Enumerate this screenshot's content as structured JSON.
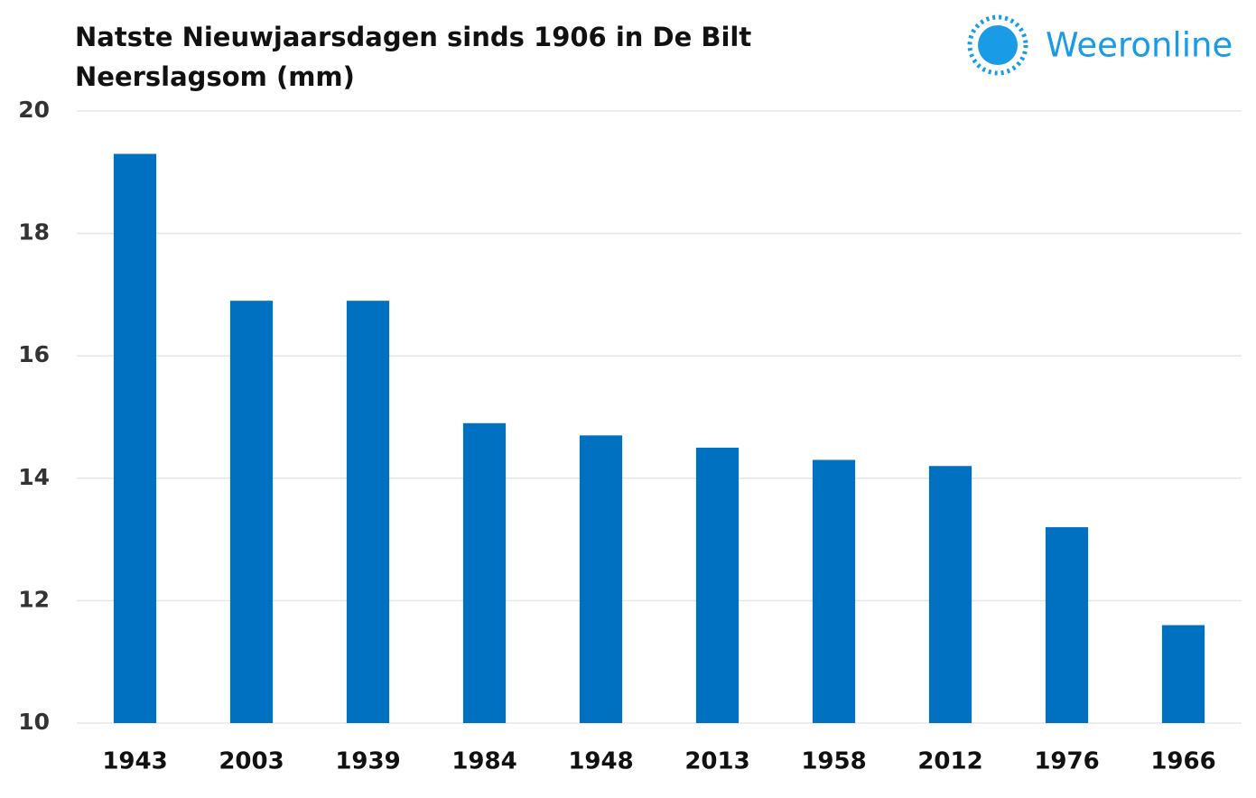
{
  "chart_data": {
    "type": "bar",
    "title": "Natste Nieuwjaarsdagen sinds 1906 in De Bilt",
    "subtitle": "Neerslagsom (mm)",
    "logo": "Weeronline",
    "categories": [
      "1943",
      "2003",
      "1939",
      "1984",
      "1948",
      "2013",
      "1958",
      "2012",
      "1976",
      "1966"
    ],
    "values": [
      19.3,
      16.9,
      16.9,
      14.9,
      14.7,
      14.5,
      14.3,
      14.2,
      13.2,
      11.6
    ],
    "color": "#0070c0",
    "ylim": [
      10,
      20
    ],
    "yticks": [
      10,
      12,
      14,
      16,
      18,
      20
    ],
    "grid": true
  }
}
